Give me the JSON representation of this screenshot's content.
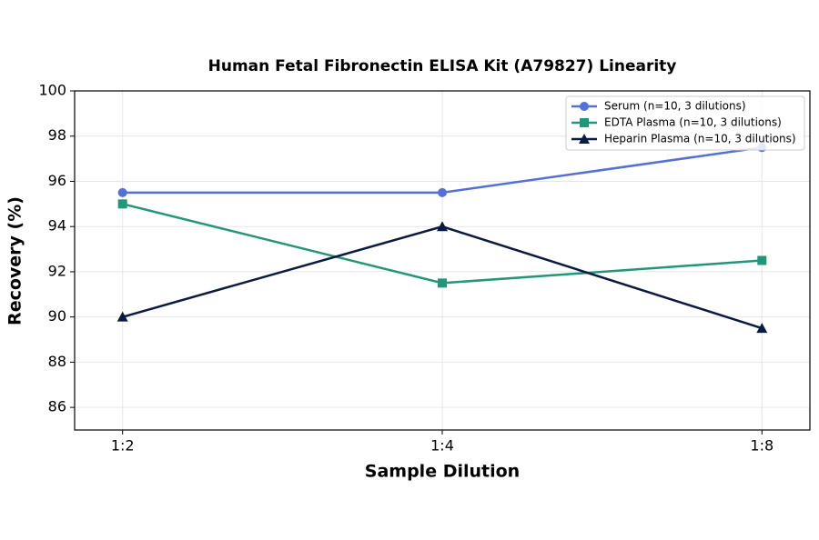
{
  "chart_data": {
    "type": "line",
    "title": "Human Fetal Fibronectin ELISA Kit (A79827) Linearity",
    "xlabel": "Sample Dilution",
    "ylabel": "Recovery (%)",
    "categories": [
      "1:2",
      "1:4",
      "1:8"
    ],
    "series": [
      {
        "name": "Serum (n=10, 3 dilutions)",
        "color": "#5470d6",
        "marker": "circle",
        "values": [
          95.5,
          95.5,
          97.5
        ]
      },
      {
        "name": "EDTA Plasma (n=10, 3 dilutions)",
        "color": "#23967a",
        "marker": "square",
        "values": [
          95,
          91.5,
          92.5
        ]
      },
      {
        "name": "Heparin Plasma (n=10, 3 dilutions)",
        "color": "#0b1a40",
        "marker": "triangle",
        "values": [
          90,
          94,
          89.5
        ]
      }
    ],
    "ylim": [
      85,
      100
    ],
    "yticks": [
      86,
      88,
      90,
      92,
      94,
      96,
      98,
      100
    ],
    "grid": true,
    "legend": "upper right"
  }
}
